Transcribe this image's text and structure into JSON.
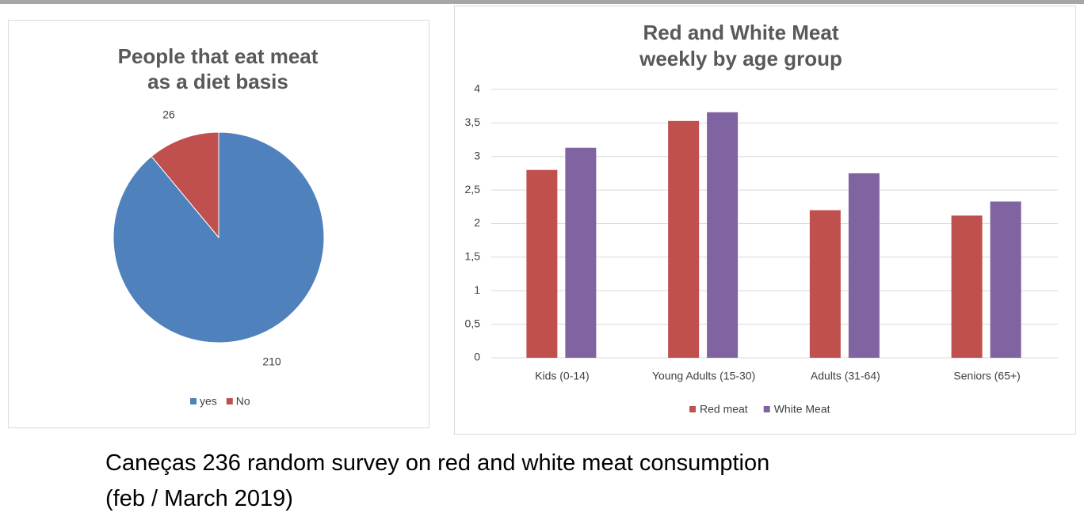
{
  "chart_data": [
    {
      "type": "pie",
      "title": [
        "People that eat meat",
        "as a diet basis"
      ],
      "categories": [
        "yes",
        "No"
      ],
      "values": [
        210,
        26
      ],
      "colors": [
        "#4f81bd",
        "#c0504d"
      ]
    },
    {
      "type": "bar",
      "title": [
        "Red and White Meat",
        "weekly by age group"
      ],
      "categories": [
        "Kids (0-14)",
        "Young Adults (15-30)",
        "Adults (31-64)",
        "Seniors (65+)"
      ],
      "series": [
        {
          "name": "Red meat",
          "color": "#c0504d",
          "values": [
            2.8,
            3.53,
            2.2,
            2.12
          ]
        },
        {
          "name": "White Meat",
          "color": "#8064a2",
          "values": [
            3.13,
            3.66,
            2.75,
            2.33
          ]
        }
      ],
      "ylim": [
        0,
        4
      ],
      "yticks": [
        0,
        {
          "value": 0.5,
          "label": "0,5"
        },
        1,
        {
          "value": 1.5,
          "label": "1,5"
        },
        2,
        {
          "value": 2.5,
          "label": "2,5"
        },
        3,
        {
          "value": 3.5,
          "label": "3,5"
        },
        4
      ],
      "grid": true,
      "legend": "bottom"
    }
  ],
  "caption": [
    "Caneças 236 random survey on red and white meat consumption",
    "(feb / March 2019)"
  ]
}
